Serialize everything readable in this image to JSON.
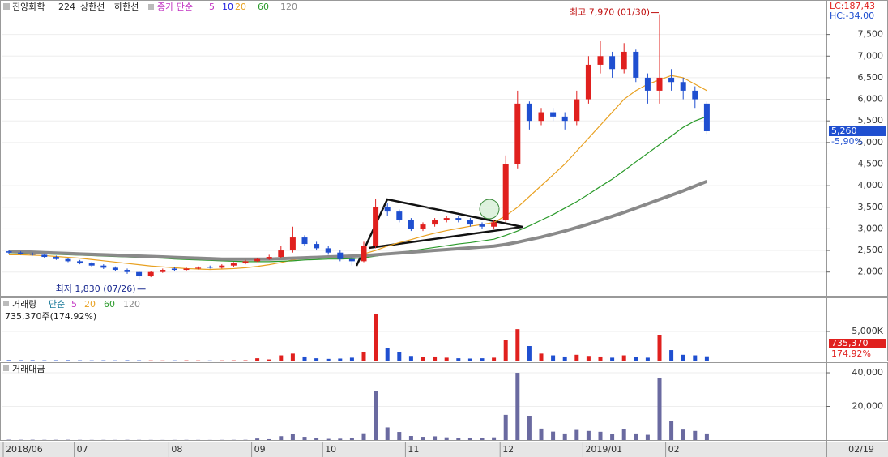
{
  "header": {
    "name": "진양화학",
    "code": "224",
    "upper": "상한선",
    "lower": "하한선",
    "ma_label": "종가 단순",
    "ma_short": [
      "5",
      "10"
    ],
    "ma_short_colors": [
      "#c030c0",
      "#2020e0"
    ],
    "lc": "LC:187,43",
    "hc": "HC:-34,00"
  },
  "chart_data": [
    {
      "type": "candlestick",
      "categories": [
        "2018/06",
        null,
        null,
        null,
        null,
        null,
        "07",
        null,
        null,
        null,
        null,
        null,
        null,
        null,
        "08",
        null,
        null,
        null,
        null,
        null,
        null,
        "09",
        null,
        null,
        null,
        null,
        null,
        "10",
        null,
        null,
        null,
        null,
        null,
        null,
        "11",
        null,
        null,
        null,
        null,
        null,
        null,
        null,
        "12",
        null,
        null,
        null,
        null,
        null,
        null,
        "2019/01",
        null,
        null,
        null,
        null,
        null,
        null,
        "02",
        null,
        null,
        null
      ],
      "open": [
        2480,
        2450,
        2420,
        2400,
        2350,
        2300,
        2250,
        2200,
        2150,
        2100,
        2050,
        2000,
        1900,
        2000,
        2080,
        2050,
        2080,
        2120,
        2100,
        2150,
        2200,
        2250,
        2300,
        2350,
        2500,
        2800,
        2650,
        2550,
        2450,
        2300,
        2250,
        2600,
        3500,
        3400,
        3200,
        3000,
        3100,
        3200,
        3250,
        3200,
        3100,
        3050,
        3200,
        4500,
        5900,
        5500,
        5700,
        5600,
        5500,
        6000,
        6800,
        7000,
        6700,
        7100,
        6500,
        6200,
        6500,
        6400,
        6200,
        5900
      ],
      "high": [
        2520,
        2480,
        2450,
        2420,
        2380,
        2320,
        2280,
        2230,
        2180,
        2130,
        2080,
        2020,
        2030,
        2080,
        2120,
        2110,
        2130,
        2150,
        2180,
        2230,
        2280,
        2330,
        2400,
        2600,
        3050,
        2850,
        2700,
        2600,
        2500,
        2350,
        2700,
        3700,
        3600,
        3450,
        3250,
        3150,
        3250,
        3300,
        3300,
        3250,
        3150,
        3200,
        4700,
        6200,
        5950,
        5800,
        5800,
        5700,
        6200,
        7000,
        7350,
        7100,
        7300,
        7150,
        6600,
        7970,
        6700,
        6500,
        6300,
        5950
      ],
      "low": [
        2420,
        2400,
        2380,
        2330,
        2280,
        2230,
        2180,
        2120,
        2070,
        2020,
        1960,
        1830,
        1880,
        1980,
        2020,
        2030,
        2060,
        2080,
        2080,
        2120,
        2180,
        2230,
        2280,
        2320,
        2450,
        2600,
        2500,
        2400,
        2250,
        2150,
        2230,
        2550,
        3300,
        3150,
        2950,
        2950,
        3050,
        3150,
        3150,
        3050,
        3000,
        3000,
        3150,
        4400,
        5300,
        5400,
        5500,
        5300,
        5400,
        5900,
        6600,
        6500,
        6600,
        6400,
        5900,
        5900,
        6200,
        6000,
        5800,
        5200
      ],
      "close": [
        2450,
        2420,
        2400,
        2350,
        2300,
        2250,
        2200,
        2150,
        2100,
        2050,
        2000,
        1900,
        2000,
        2050,
        2050,
        2080,
        2100,
        2100,
        2150,
        2200,
        2250,
        2300,
        2350,
        2500,
        2800,
        2650,
        2550,
        2450,
        2300,
        2250,
        2600,
        3500,
        3400,
        3200,
        3000,
        3100,
        3200,
        3250,
        3200,
        3100,
        3050,
        3150,
        4500,
        5900,
        5500,
        5700,
        5600,
        5500,
        6000,
        6800,
        7000,
        6700,
        7100,
        6500,
        6200,
        6500,
        6400,
        6200,
        6000,
        5260
      ],
      "up_color": "#e0201e",
      "down_color": "#1f4fd0",
      "series": [
        {
          "name": "20",
          "color": "#e8a020",
          "values": [
            2400,
            2400,
            2390,
            2380,
            2360,
            2340,
            2320,
            2290,
            2260,
            2230,
            2200,
            2170,
            2140,
            2120,
            2100,
            2080,
            2070,
            2060,
            2070,
            2080,
            2100,
            2130,
            2170,
            2220,
            2280,
            2320,
            2350,
            2370,
            2380,
            2390,
            2420,
            2500,
            2600,
            2680,
            2750,
            2830,
            2900,
            2960,
            3010,
            3060,
            3100,
            3150,
            3300,
            3500,
            3750,
            4000,
            4250,
            4500,
            4800,
            5100,
            5400,
            5700,
            6000,
            6200,
            6350,
            6450,
            6550,
            6500,
            6350,
            6200
          ]
        },
        {
          "name": "60",
          "color": "#2a9a2a",
          "values": [
            2450,
            2440,
            2430,
            2420,
            2410,
            2400,
            2390,
            2380,
            2370,
            2360,
            2350,
            2340,
            2330,
            2320,
            2300,
            2290,
            2280,
            2270,
            2260,
            2250,
            2240,
            2240,
            2240,
            2250,
            2260,
            2280,
            2290,
            2300,
            2300,
            2310,
            2330,
            2370,
            2410,
            2450,
            2490,
            2530,
            2570,
            2610,
            2650,
            2680,
            2720,
            2760,
            2850,
            2950,
            3070,
            3200,
            3330,
            3480,
            3630,
            3800,
            3980,
            4150,
            4350,
            4550,
            4750,
            4950,
            5150,
            5350,
            5500,
            5600
          ]
        },
        {
          "name": "120",
          "color": "#8a8a8a",
          "values": [
            2480,
            2470,
            2460,
            2450,
            2440,
            2430,
            2420,
            2410,
            2400,
            2390,
            2380,
            2370,
            2360,
            2350,
            2340,
            2330,
            2320,
            2310,
            2300,
            2300,
            2300,
            2300,
            2300,
            2310,
            2320,
            2330,
            2340,
            2350,
            2360,
            2370,
            2380,
            2400,
            2420,
            2440,
            2460,
            2480,
            2500,
            2520,
            2540,
            2560,
            2580,
            2600,
            2640,
            2690,
            2750,
            2810,
            2880,
            2950,
            3030,
            3110,
            3200,
            3290,
            3380,
            3480,
            3580,
            3680,
            3780,
            3880,
            3990,
            4100
          ]
        }
      ],
      "ylim": [
        1450,
        8300
      ],
      "yticks": [
        {
          "value": 2000,
          "label": "2,000"
        },
        {
          "value": 2500,
          "label": "2,500"
        },
        {
          "value": 3000,
          "label": "3,000"
        },
        {
          "value": 3500,
          "label": "3,500"
        },
        {
          "value": 4000,
          "label": "4,000"
        },
        {
          "value": 4500,
          "label": "4,500"
        },
        {
          "value": 5000,
          "label": "5,000"
        },
        {
          "value": 5500,
          "label": "5,500"
        },
        {
          "value": 6000,
          "label": "6,000"
        },
        {
          "value": 6500,
          "label": "6,500"
        },
        {
          "value": 7000,
          "label": "7,000"
        },
        {
          "value": 7500,
          "label": "7,500"
        }
      ],
      "last_price": {
        "value": 5260,
        "label": "5,260"
      },
      "change": "-5,90%",
      "high_note": "최고 7,970 (01/30)",
      "low_note": "최저 1,830 (07/26)"
    },
    {
      "type": "bar",
      "title": "거래량",
      "legend": [
        "단순",
        "5",
        "20",
        "60",
        "120"
      ],
      "info": "735,370주(174.92%)",
      "values": [
        80,
        60,
        70,
        50,
        60,
        70,
        50,
        40,
        50,
        40,
        60,
        50,
        40,
        30,
        40,
        50,
        40,
        30,
        40,
        50,
        60,
        400,
        200,
        900,
        1200,
        700,
        400,
        300,
        350,
        500,
        1500,
        8000,
        2200,
        1500,
        800,
        600,
        700,
        500,
        400,
        350,
        400,
        500,
        3500,
        5400,
        2500,
        1200,
        900,
        700,
        1000,
        800,
        700,
        500,
        900,
        600,
        500,
        4400,
        1800,
        1000,
        900,
        735.37
      ],
      "ylim": [
        0,
        10700
      ],
      "yticks": [
        {
          "value": 5000,
          "label": "5,000K"
        }
      ],
      "last": {
        "value": 735.37,
        "label": "735,370"
      },
      "ratio": "174.92%"
    },
    {
      "type": "bar",
      "title": "거래대금",
      "color": "#6a6aa0",
      "values": [
        200,
        150,
        170,
        120,
        140,
        160,
        110,
        90,
        100,
        80,
        120,
        100,
        80,
        60,
        80,
        100,
        80,
        60,
        90,
        110,
        130,
        900,
        500,
        2300,
        3400,
        1900,
        1000,
        700,
        800,
        1100,
        4000,
        29000,
        7500,
        4800,
        2400,
        1900,
        2200,
        1600,
        1300,
        1100,
        1200,
        1600,
        15000,
        40000,
        14000,
        6800,
        5000,
        3900,
        6000,
        5400,
        4900,
        3400,
        6400,
        3900,
        3100,
        37000,
        11500,
        6200,
        5400,
        3900
      ],
      "ylim": [
        0,
        45800
      ],
      "yticks": [
        {
          "value": 20000,
          "label": "20,000"
        },
        {
          "value": 40000,
          "label": "40,000"
        }
      ]
    }
  ],
  "footer_date": "02/19"
}
